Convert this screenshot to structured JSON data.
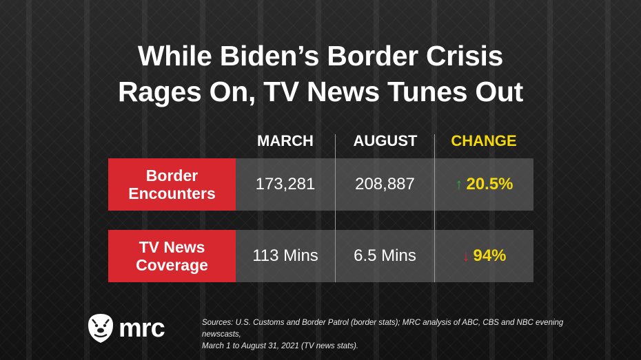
{
  "title_line1": "While Biden’s Border Crisis",
  "title_line2": "Rages On, TV News Tunes Out",
  "chart_data": {
    "type": "table",
    "columns": [
      "MARCH",
      "AUGUST",
      "CHANGE"
    ],
    "rows": [
      {
        "label_line1": "Border",
        "label_line2": "Encounters",
        "march": "173,281",
        "august": "208,887",
        "change": "20.5%",
        "change_direction": "up"
      },
      {
        "label_line1": "TV News",
        "label_line2": "Coverage",
        "march": "113 Mins",
        "august": "6.5 Mins",
        "change": "94%",
        "change_direction": "down"
      }
    ]
  },
  "colors": {
    "accent_red": "#d7272f",
    "change_yellow": "#f5d90a",
    "arrow_up_green": "#2eaa3c"
  },
  "logo_text": "mrc",
  "sources_line1": "Sources: U.S. Customs and Border Patrol (border stats); MRC analysis of ABC, CBS and NBC evening newscasts,",
  "sources_line2": "March 1 to August 31, 2021 (TV news stats).",
  "icons": {
    "logo": "bulldog-logo-icon",
    "up": "arrow-up-icon",
    "down": "arrow-down-icon"
  }
}
